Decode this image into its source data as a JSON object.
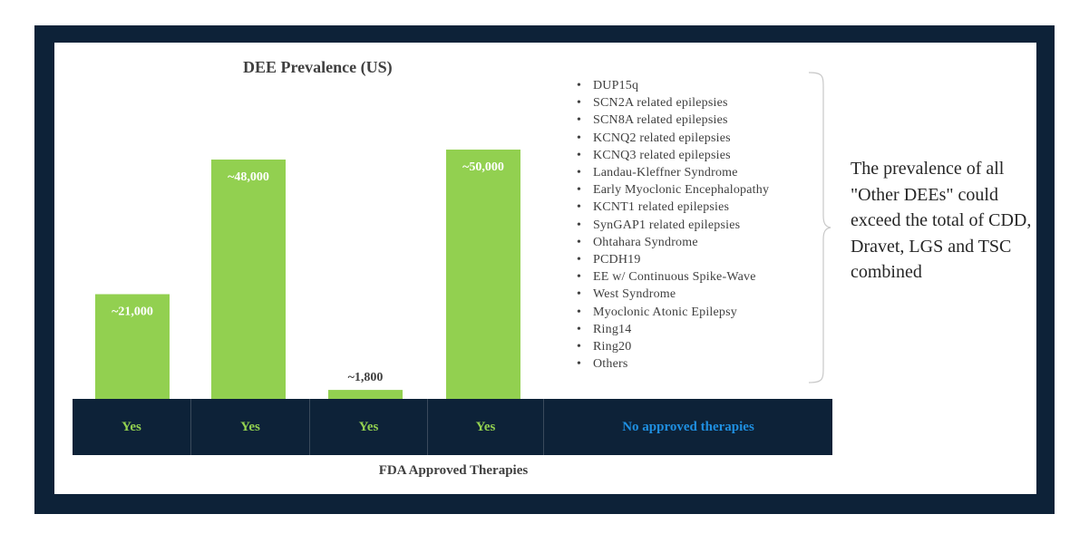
{
  "chart_data": {
    "type": "bar",
    "title": "DEE Prevalence (US)",
    "xlabel": "FDA Approved Therapies",
    "ylabel": "",
    "ylim": [
      0,
      60000
    ],
    "categories": [
      "Yes",
      "Yes",
      "Yes",
      "Yes"
    ],
    "values": [
      21000,
      48000,
      1800,
      50000
    ],
    "data_labels": [
      "~21,000",
      "~48,000",
      "~1,800",
      "~50,000"
    ],
    "bar_color": "#92d050",
    "label_inside_color": "#ffffff",
    "label_outside_color": "#404040"
  },
  "therapy_row": [
    "Yes",
    "Yes",
    "Yes",
    "Yes",
    "No approved therapies"
  ],
  "other_dees": [
    "DUP15q",
    "SCN2A related epilepsies",
    "SCN8A related epilepsies",
    "KCNQ2 related epilepsies",
    "KCNQ3 related epilepsies",
    "Landau-Kleffner Syndrome",
    "Early Myoclonic Encephalopathy",
    "KCNT1 related epilepsies",
    "SynGAP1 related epilepsies",
    "Ohtahara Syndrome",
    "PCDH19",
    "EE w/ Continuous Spike-Wave",
    "West Syndrome",
    "Myoclonic Atonic Epilepsy",
    "Ring14",
    "Ring20",
    "Others"
  ],
  "note": "The prevalence of all \"Other DEEs\" could exceed the total of CDD, Dravet, LGS and TSC combined",
  "colors": {
    "frame": "#0d2238",
    "bar": "#92d050",
    "yes_text": "#92d050",
    "no_text": "#1f8fe0"
  }
}
